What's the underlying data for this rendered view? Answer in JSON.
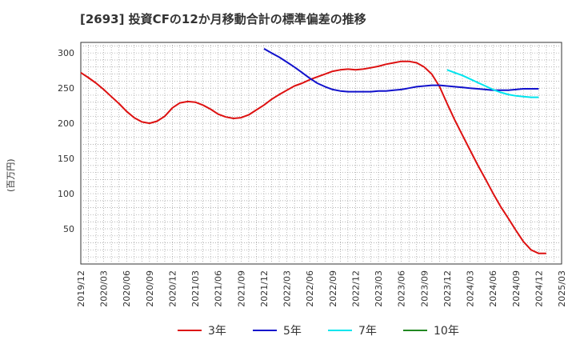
{
  "title": "[2693]  投資CFの12か月移動合計の標準偏差の推移",
  "chart_data": {
    "type": "line",
    "ylabel": "(百万円)",
    "xlabel": "",
    "ylim": [
      0,
      315
    ],
    "yticks": [
      50,
      100,
      150,
      200,
      250,
      300
    ],
    "x_categories": [
      "2019/12",
      "2020/03",
      "2020/06",
      "2020/09",
      "2020/12",
      "2021/03",
      "2021/06",
      "2021/09",
      "2021/12",
      "2022/03",
      "2022/06",
      "2022/09",
      "2022/12",
      "2023/03",
      "2023/06",
      "2023/09",
      "2023/12",
      "2024/03",
      "2024/06",
      "2024/09",
      "2024/12",
      "2025/03"
    ],
    "grid": true,
    "legend_position": "bottom",
    "series": [
      {
        "name": "3年",
        "color": "#dd1111",
        "points": [
          [
            0,
            272
          ],
          [
            0.33,
            265
          ],
          [
            0.67,
            257
          ],
          [
            1,
            248
          ],
          [
            1.33,
            238
          ],
          [
            1.67,
            228
          ],
          [
            2,
            217
          ],
          [
            2.33,
            208
          ],
          [
            2.67,
            202
          ],
          [
            3,
            200
          ],
          [
            3.33,
            203
          ],
          [
            3.67,
            210
          ],
          [
            4,
            222
          ],
          [
            4.33,
            229
          ],
          [
            4.67,
            231
          ],
          [
            5,
            230
          ],
          [
            5.33,
            226
          ],
          [
            5.67,
            220
          ],
          [
            6,
            213
          ],
          [
            6.33,
            209
          ],
          [
            6.67,
            207
          ],
          [
            7,
            208
          ],
          [
            7.33,
            212
          ],
          [
            7.67,
            219
          ],
          [
            8,
            226
          ],
          [
            8.33,
            234
          ],
          [
            8.67,
            241
          ],
          [
            9,
            247
          ],
          [
            9.33,
            253
          ],
          [
            9.67,
            257
          ],
          [
            10,
            262
          ],
          [
            10.33,
            266
          ],
          [
            10.67,
            270
          ],
          [
            11,
            274
          ],
          [
            11.33,
            276
          ],
          [
            11.67,
            277
          ],
          [
            12,
            276
          ],
          [
            12.33,
            277
          ],
          [
            12.67,
            279
          ],
          [
            13,
            281
          ],
          [
            13.33,
            284
          ],
          [
            13.67,
            286
          ],
          [
            14,
            288
          ],
          [
            14.33,
            288
          ],
          [
            14.67,
            286
          ],
          [
            15,
            280
          ],
          [
            15.33,
            270
          ],
          [
            15.67,
            252
          ],
          [
            16,
            228
          ],
          [
            16.33,
            205
          ],
          [
            16.67,
            183
          ],
          [
            17,
            162
          ],
          [
            17.33,
            141
          ],
          [
            17.67,
            121
          ],
          [
            18,
            101
          ],
          [
            18.33,
            82
          ],
          [
            18.67,
            65
          ],
          [
            19,
            48
          ],
          [
            19.33,
            32
          ],
          [
            19.67,
            20
          ],
          [
            20,
            15
          ],
          [
            20.33,
            15
          ]
        ]
      },
      {
        "name": "5年",
        "color": "#1111cc",
        "points": [
          [
            8,
            306
          ],
          [
            8.33,
            300
          ],
          [
            8.67,
            294
          ],
          [
            9,
            287
          ],
          [
            9.33,
            280
          ],
          [
            9.67,
            272
          ],
          [
            10,
            264
          ],
          [
            10.33,
            257
          ],
          [
            10.67,
            252
          ],
          [
            11,
            248
          ],
          [
            11.33,
            246
          ],
          [
            11.67,
            245
          ],
          [
            12,
            245
          ],
          [
            12.33,
            245
          ],
          [
            12.67,
            245
          ],
          [
            13,
            246
          ],
          [
            13.33,
            246
          ],
          [
            13.67,
            247
          ],
          [
            14,
            248
          ],
          [
            14.33,
            250
          ],
          [
            14.67,
            252
          ],
          [
            15,
            253
          ],
          [
            15.33,
            254
          ],
          [
            15.67,
            254
          ],
          [
            16,
            253
          ],
          [
            16.33,
            252
          ],
          [
            16.67,
            251
          ],
          [
            17,
            250
          ],
          [
            17.33,
            249
          ],
          [
            17.67,
            248
          ],
          [
            18,
            247
          ],
          [
            18.33,
            247
          ],
          [
            18.67,
            247
          ],
          [
            19,
            248
          ],
          [
            19.33,
            249
          ],
          [
            19.67,
            249
          ],
          [
            20,
            249
          ]
        ]
      },
      {
        "name": "7年",
        "color": "#00e5ee",
        "points": [
          [
            16,
            276
          ],
          [
            16.33,
            272
          ],
          [
            16.67,
            268
          ],
          [
            17,
            263
          ],
          [
            17.33,
            258
          ],
          [
            17.67,
            253
          ],
          [
            18,
            248
          ],
          [
            18.33,
            244
          ],
          [
            18.67,
            241
          ],
          [
            19,
            239
          ],
          [
            19.33,
            238
          ],
          [
            19.67,
            237
          ],
          [
            20,
            237
          ]
        ]
      },
      {
        "name": "10年",
        "color": "#228822",
        "points": []
      }
    ]
  }
}
